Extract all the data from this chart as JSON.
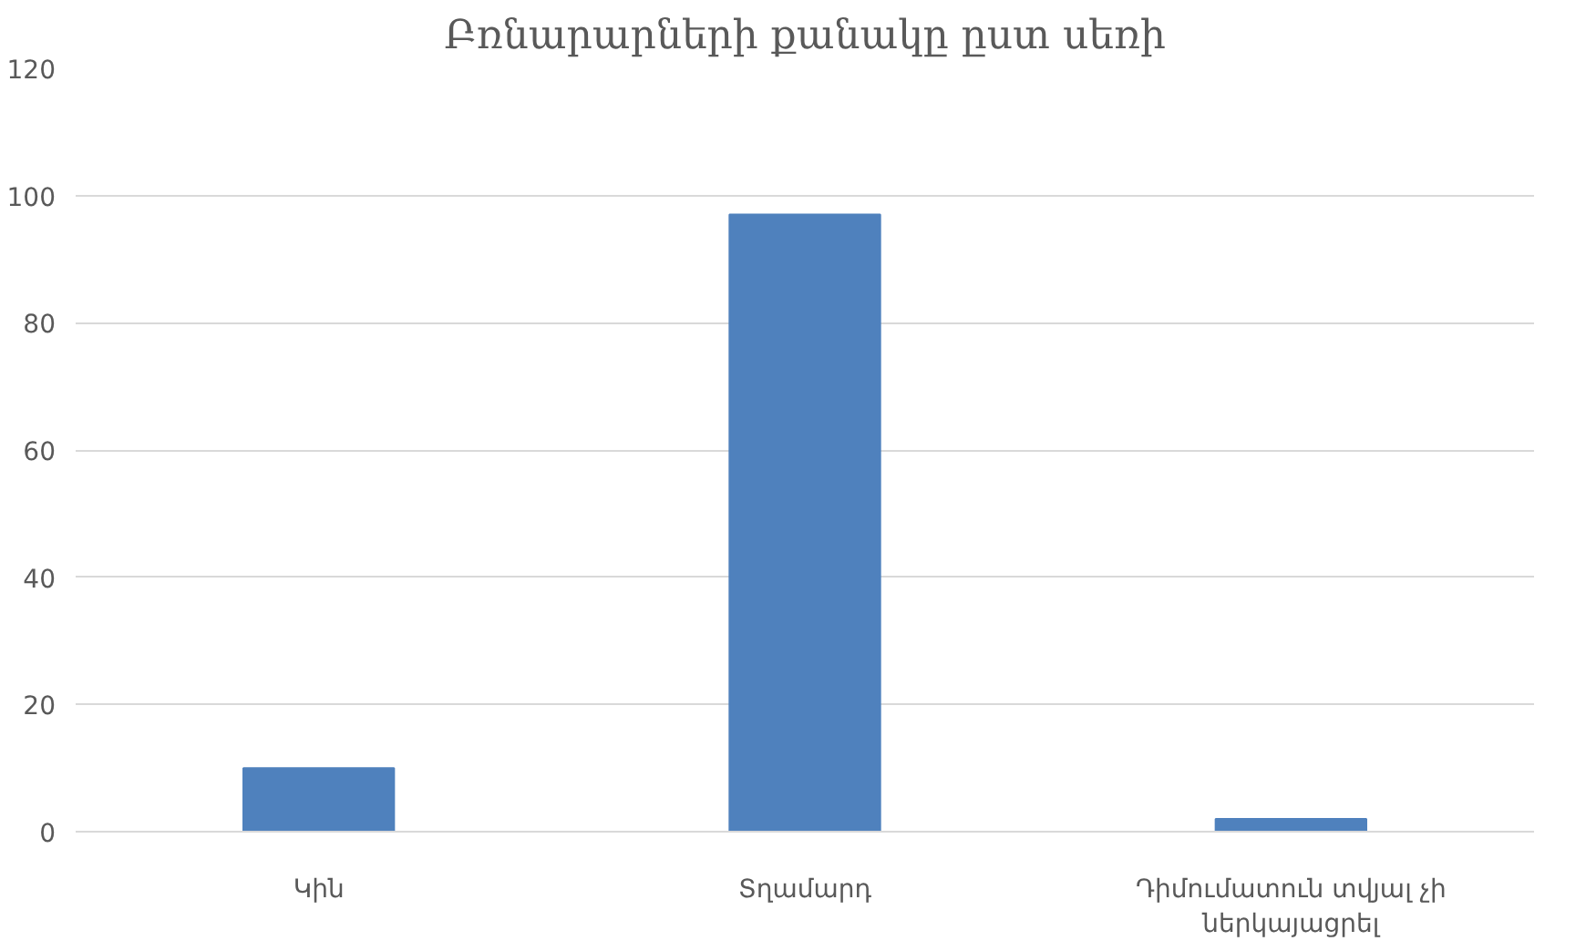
{
  "chart_data": {
    "type": "bar",
    "title": "Բռնարարների քանակը ըստ սեռի",
    "categories": [
      "Կին",
      "Տղամարդ",
      "Դիմումատուն տվյալ չի ներկայացրել"
    ],
    "values": [
      10,
      97,
      2
    ],
    "color": "#4f81bd",
    "ylim": [
      0,
      120
    ],
    "yticks": [
      0,
      20,
      40,
      60,
      80,
      100,
      120
    ],
    "grid": "y"
  }
}
